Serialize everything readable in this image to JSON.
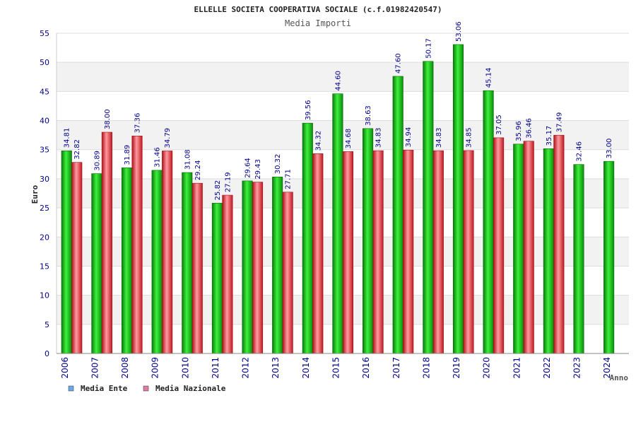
{
  "chart_data": {
    "type": "bar",
    "title": "ELLELLE SOCIETA COOPERATIVA SOCIALE (c.f.01982420547)",
    "subtitle": "Media Importi",
    "ylabel": "Euro",
    "xlabel": "Anno",
    "ylim": [
      0,
      55
    ],
    "ytick_step": 5,
    "grid": true,
    "legend_position": "bottom-left",
    "categories": [
      "2006",
      "2007",
      "2008",
      "2009",
      "2010",
      "2011",
      "2012",
      "2013",
      "2014",
      "2015",
      "2016",
      "2017",
      "2018",
      "2019",
      "2020",
      "2021",
      "2022",
      "2023",
      "2024"
    ],
    "series": [
      {
        "name": "Media Ente",
        "legend_color": "#6fa8e6",
        "bar_color": "#1fbf1f",
        "values": [
          34.81,
          30.89,
          31.89,
          31.46,
          31.08,
          25.82,
          29.64,
          30.32,
          39.56,
          44.6,
          38.63,
          47.6,
          50.17,
          53.06,
          45.14,
          35.96,
          35.17,
          32.46,
          33.0
        ],
        "labels": [
          "34.81",
          "30.89",
          "31.89",
          "31.46",
          "31.08",
          "25.82",
          "29.64",
          "30.32",
          "39.56",
          "44.60",
          "38.63",
          "47.60",
          "50.17",
          "53.06",
          "45.14",
          "35.96",
          "35.17",
          "32.46",
          "33.00"
        ]
      },
      {
        "name": "Media Nazionale",
        "legend_color": "#e07aa6",
        "bar_color": "#e8303a",
        "values": [
          32.82,
          38.0,
          37.36,
          34.79,
          29.24,
          27.19,
          29.43,
          27.71,
          34.32,
          34.68,
          34.83,
          34.94,
          34.83,
          34.85,
          37.05,
          36.46,
          37.49,
          null,
          null
        ],
        "labels": [
          "32.82",
          "38.00",
          "37.36",
          "34.79",
          "29.24",
          "27.19",
          "29.43",
          "27.71",
          "34.32",
          "34.68",
          "34.83",
          "34.94",
          "34.83",
          "34.85",
          "37.05",
          "36.46",
          "37.49",
          null,
          null
        ]
      }
    ]
  }
}
